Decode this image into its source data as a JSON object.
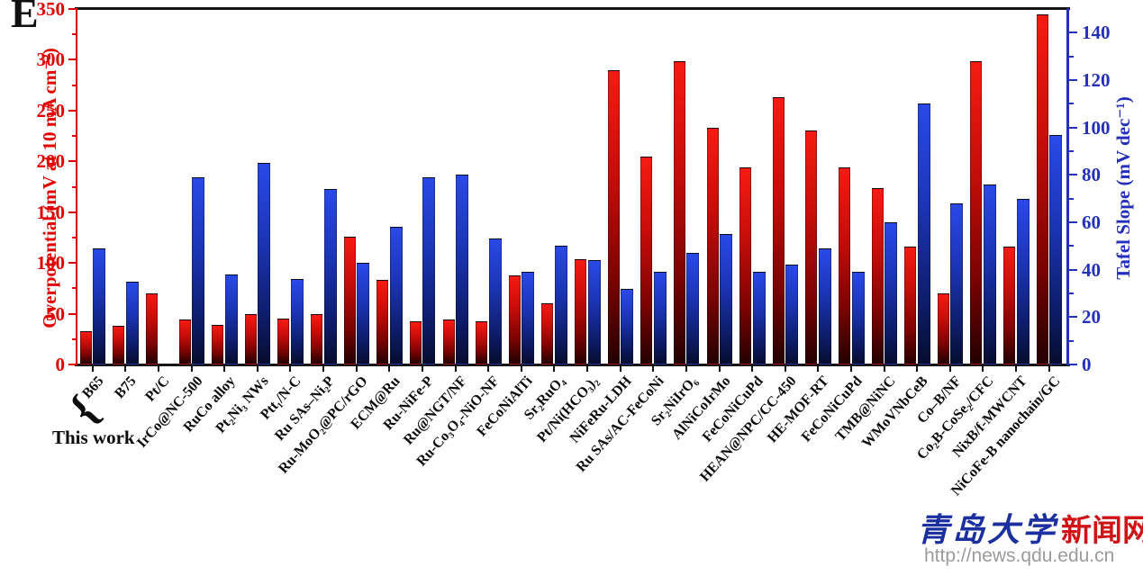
{
  "panel_label": "E",
  "annotation": {
    "brace": "{",
    "label": "This work"
  },
  "watermark": {
    "cn_blue": "青岛大学",
    "cn_red": "新闻网",
    "url": "http://news.qdu.edu.cn"
  },
  "chart_data": {
    "type": "bar",
    "title": "",
    "categories": [
      "B65",
      "B75",
      "Pt/C",
      "IrCo@NC-500",
      "RuCo alloy",
      "Pt₂Ni₃ NWs",
      "Ptt₁/N-C",
      "Ru SAs–Ni₂P",
      "Ru-MoO₂@PC/rGO",
      "ECM@Ru",
      "Ru-NiFe-P",
      "Ru@NGT/NF",
      "Ru-Co₃O₄-NiO-NF",
      "FeCoNiAlTi",
      "Sr₂RuO₄",
      "Pt/Ni(HCO₃)₂",
      "NiFeRu-LDH",
      "Ru SAs/AC-FeCoNi",
      "Sr₂NiIrO₆",
      "AlNiCoIrMo",
      "FeCoNiCuPd",
      "HEAN@NPC/CC-450",
      "HE-MOF-RT",
      "FeCoNiCuPd",
      "TMB@NiNC",
      "WMoVNbCeB",
      "Co–B/NF",
      "Co₂B-CoSe₂/CFC",
      "NixB/f-MWCNT",
      "NiCoFe-B nanochain/GC"
    ],
    "series": [
      {
        "name": "Overpotential",
        "axis": "left",
        "color_top": "#f61b12",
        "color_bottom": "#230000",
        "values": [
          33,
          38,
          70,
          44,
          39,
          50,
          45,
          50,
          126,
          83,
          43,
          44,
          43,
          88,
          60,
          104,
          290,
          205,
          299,
          233,
          194,
          263,
          230,
          194,
          174,
          116,
          70,
          299,
          116,
          345
        ]
      },
      {
        "name": "Tafel Slope",
        "axis": "right",
        "color_top": "#2a49e8",
        "color_bottom": "#060d2e",
        "values": [
          49,
          35,
          null,
          79,
          38,
          85,
          36,
          74,
          43,
          58,
          79,
          80,
          53,
          39,
          50,
          44,
          32,
          39,
          47,
          55,
          39,
          42,
          49,
          39,
          60,
          110,
          68,
          76,
          70,
          97
        ]
      }
    ],
    "left_axis": {
      "label": "Overpotential (mV at 10 mA cm⁻²)",
      "min": 0,
      "max": 350,
      "major_step": 50,
      "minor_step": 25,
      "ticks": [
        0,
        50,
        100,
        150,
        200,
        250,
        300,
        350
      ],
      "color": "#e00000"
    },
    "right_axis": {
      "label": "Tafel Slope (mV dec⁻¹)",
      "min": 0,
      "max": 150,
      "major_step": 20,
      "minor_step": 10,
      "ticks": [
        0,
        20,
        40,
        60,
        80,
        100,
        120,
        140
      ],
      "color": "#2430b8"
    },
    "grid": false,
    "legend": false
  }
}
